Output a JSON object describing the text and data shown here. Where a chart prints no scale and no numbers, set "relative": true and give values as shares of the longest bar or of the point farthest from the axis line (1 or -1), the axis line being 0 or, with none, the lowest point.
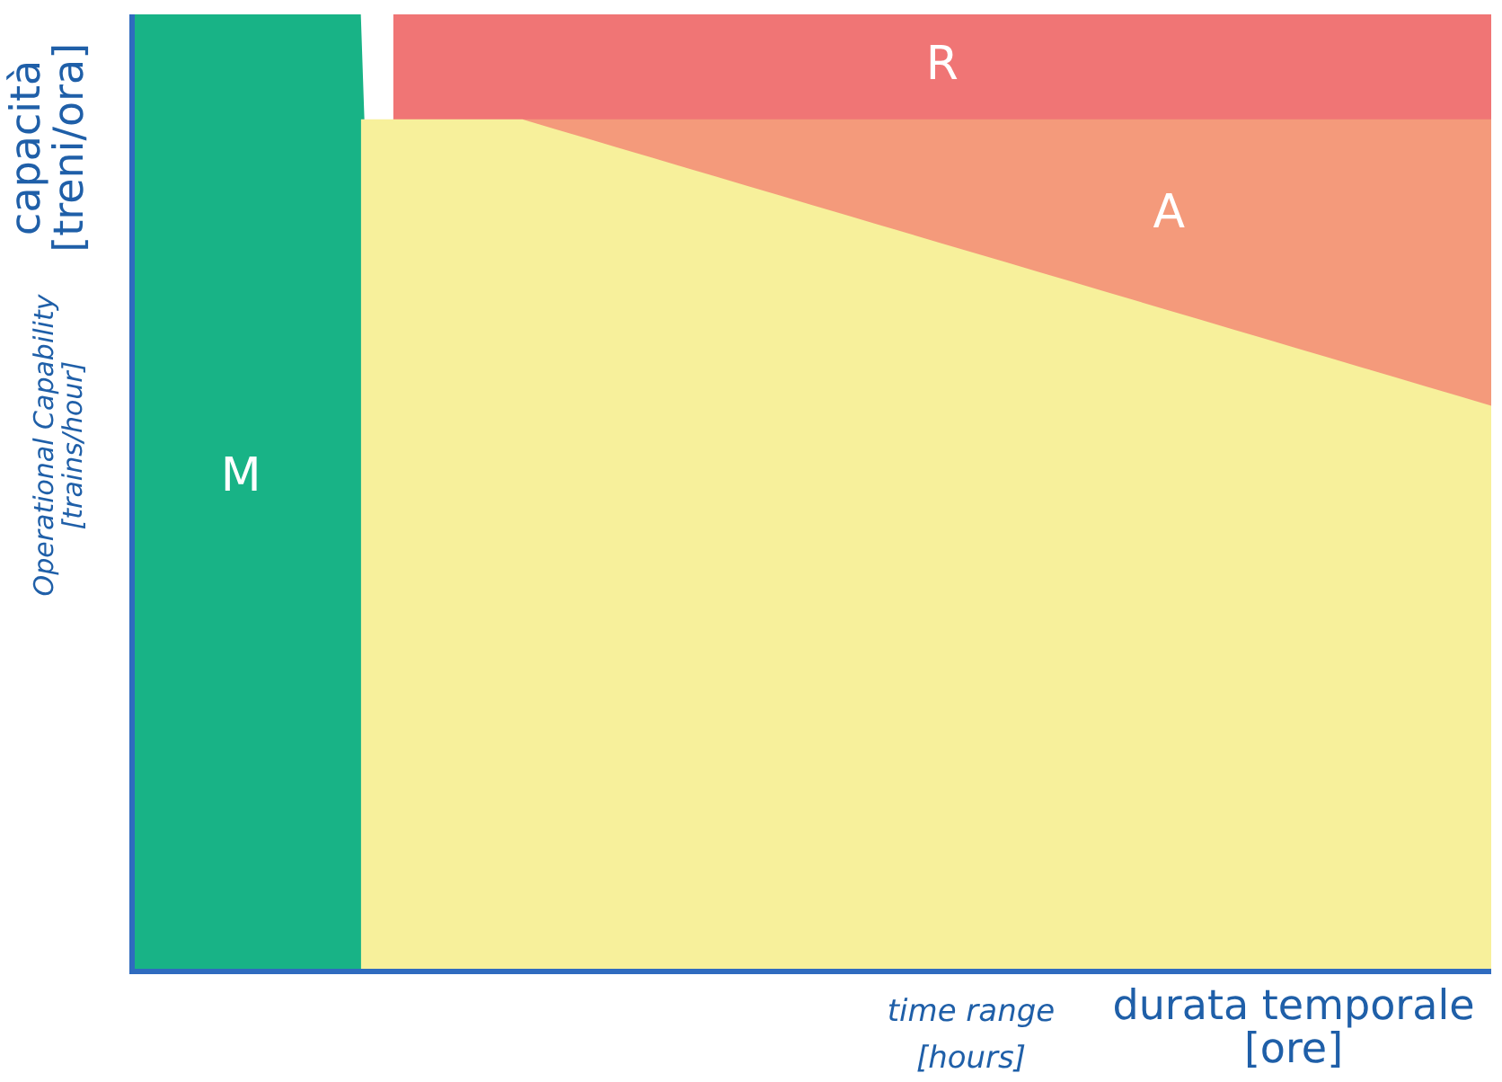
{
  "chart_data": {
    "type": "area",
    "relative": true,
    "ylabel": "capacità [treni/ora]",
    "xlabel": "durata temporale [ore]",
    "annotations": [
      "Operational Capability [trains/hour]",
      "time range [hours]"
    ],
    "categories": [
      null,
      null,
      null,
      null,
      null,
      null,
      null,
      null,
      null,
      null,
      null,
      null,
      null,
      null,
      null,
      null,
      null,
      null,
      null,
      null,
      null,
      null,
      null,
      null,
      null,
      null,
      null,
      null,
      null,
      null,
      null,
      null,
      null,
      null,
      null,
      null,
      null,
      null,
      null,
      null,
      null,
      null,
      null
    ],
    "series": [
      {
        "color": "#f7f09b",
        "values": [
          null,
          null,
          null,
          null,
          null,
          null,
          null,
          0.89,
          0.89,
          0.89,
          0.89,
          0.89,
          0.89,
          0.88,
          0.87,
          0.86,
          0.85,
          0.84,
          0.83,
          0.82,
          0.81,
          0.8,
          0.79,
          0.78,
          0.77,
          0.76,
          0.75,
          0.74,
          0.73,
          0.72,
          0.71,
          0.7,
          0.69,
          0.68,
          0.67,
          0.66,
          0.65,
          0.64,
          0.63,
          0.62,
          0.61,
          0.6,
          0.59
        ]
      },
      {
        "name": "A",
        "color": "#f49a7b",
        "values": [
          null,
          null,
          null,
          null,
          null,
          null,
          null,
          null,
          null,
          null,
          null,
          null,
          0.89,
          0.89,
          0.89,
          0.89,
          0.89,
          0.89,
          0.89,
          0.89,
          0.89,
          0.89,
          0.89,
          0.89,
          0.89,
          0.89,
          0.89,
          0.89,
          0.89,
          0.89,
          0.89,
          0.89,
          0.89,
          0.89,
          0.89,
          0.89,
          0.89,
          0.89,
          0.89,
          0.89,
          0.89,
          0.89,
          0.89
        ]
      },
      {
        "name": "R",
        "color": "#f07575",
        "values": [
          null,
          null,
          null,
          null,
          null,
          null,
          null,
          null,
          1,
          1,
          1,
          1,
          1,
          1,
          1,
          1,
          1,
          1,
          1,
          1,
          1,
          1,
          1,
          1,
          1,
          1,
          1,
          1,
          1,
          1,
          1,
          1,
          1,
          1,
          1,
          1,
          1,
          1,
          1,
          1,
          1,
          1,
          1
        ]
      },
      {
        "name": "M",
        "color": "#18b386",
        "values": [
          1,
          1,
          1,
          1,
          1,
          1,
          1,
          1,
          0,
          0,
          0,
          0,
          0,
          0,
          0,
          0,
          0,
          0,
          0,
          0,
          0,
          0,
          0,
          0,
          0,
          0,
          0,
          0,
          0,
          0,
          0,
          0,
          0,
          0,
          0,
          0,
          0,
          0,
          0,
          0,
          0,
          0,
          0
        ]
      }
    ]
  }
}
